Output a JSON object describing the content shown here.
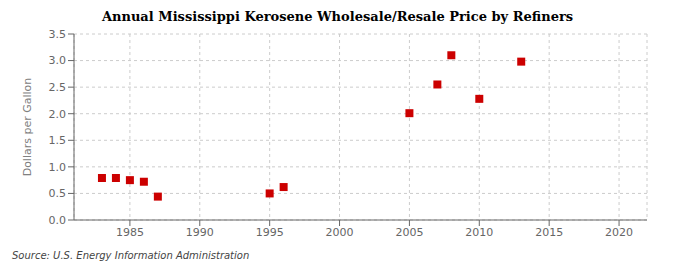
{
  "chart_data": {
    "type": "scatter",
    "title": "Annual Mississippi Kerosene Wholesale/Resale Price by Refiners",
    "ylabel": "Dollars per Gallon",
    "annotation": "Source: U.S. Energy Information Administration",
    "x": [
      1983,
      1984,
      1985,
      1986,
      1987,
      1995,
      1996,
      2005,
      2007,
      2008,
      2010,
      2013
    ],
    "values": [
      0.79,
      0.79,
      0.75,
      0.72,
      0.44,
      0.5,
      0.62,
      2.01,
      2.55,
      3.1,
      2.28,
      2.98
    ],
    "color": "#cc0000",
    "marker": "square",
    "xlim": [
      1981,
      2022
    ],
    "ylim": [
      0.0,
      3.5
    ],
    "xticks": [
      1985,
      1990,
      1995,
      2000,
      2005,
      2010,
      2015,
      2020
    ],
    "yticks": [
      {
        "value": 0.0,
        "label": "0.0"
      },
      0.5,
      {
        "value": 1.0,
        "label": "1.0"
      },
      1.5,
      {
        "value": 2.0,
        "label": "2.0"
      },
      2.5,
      {
        "value": 3.0,
        "label": "3.0"
      },
      3.5
    ],
    "grid": true
  }
}
